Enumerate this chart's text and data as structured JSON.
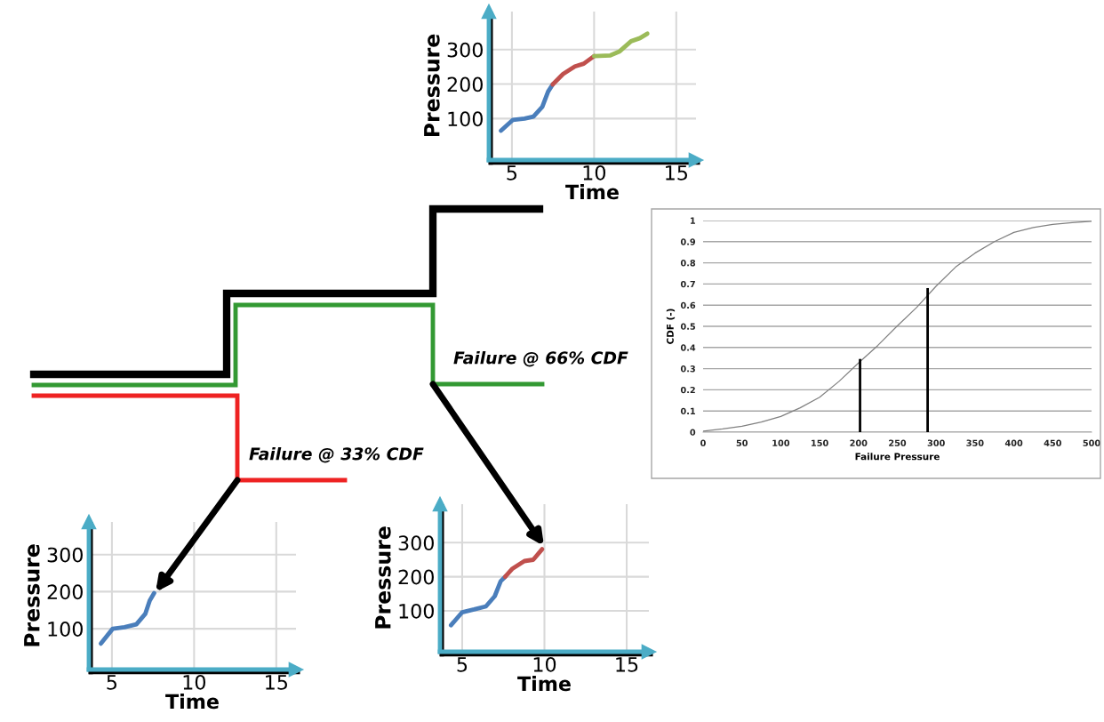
{
  "chart_data": [
    {
      "type": "line",
      "xlabel": "Time",
      "ylabel": "Pressure",
      "xlim": [
        3.6,
        16.2
      ],
      "ylim": [
        -20,
        410
      ],
      "xticks": [
        5,
        10,
        15
      ],
      "yticks": [
        100,
        200,
        300
      ],
      "grid": true,
      "series": [
        {
          "color": "#4a7ebb",
          "x": [
            4.33,
            5.05,
            5.77,
            6.31,
            6.85,
            7.2,
            7.48
          ],
          "values": [
            65,
            96,
            100,
            106,
            134,
            178,
            199
          ]
        },
        {
          "color": "#c0504d",
          "x": [
            7.48,
            8.11,
            8.83,
            9.37,
            10.0
          ],
          "values": [
            199,
            229,
            251,
            259,
            281
          ]
        },
        {
          "color": "#9bbb59",
          "x": [
            10.0,
            10.99,
            11.53,
            12.25,
            12.79,
            13.24
          ],
          "values": [
            281,
            283,
            294,
            324,
            333,
            346
          ]
        }
      ]
    },
    {
      "type": "other",
      "annotations": [
        "Failure @ 66% CDF",
        "Failure @ 33% CDF"
      ]
    },
    {
      "type": "line",
      "xlabel": "Failure Pressure",
      "ylabel": "CDF (-)",
      "xlim": [
        0,
        500
      ],
      "ylim": [
        0,
        1
      ],
      "xticks": [
        0,
        50,
        100,
        150,
        200,
        250,
        300,
        350,
        400,
        450,
        500
      ],
      "yticks": [
        0,
        0.1,
        0.2,
        0.3,
        0.4,
        0.5,
        0.6,
        0.7,
        0.8,
        0.9,
        1
      ],
      "grid": "y",
      "series": [
        {
          "color": "#808080",
          "x": [
            0,
            25,
            50,
            75,
            100,
            125,
            150,
            175,
            200,
            225,
            250,
            275,
            300,
            325,
            350,
            375,
            400,
            425,
            450,
            475,
            500
          ],
          "values": [
            0.005,
            0.015,
            0.028,
            0.048,
            0.074,
            0.115,
            0.165,
            0.24,
            0.327,
            0.41,
            0.502,
            0.59,
            0.69,
            0.78,
            0.846,
            0.9,
            0.944,
            0.967,
            0.982,
            0.99,
            0.996
          ]
        },
        {
          "color": "#000000",
          "x": [
            202,
            202
          ],
          "values": [
            0,
            0.34
          ]
        },
        {
          "color": "#000000",
          "x": [
            289,
            289
          ],
          "values": [
            0,
            0.675
          ]
        }
      ]
    },
    {
      "type": "line",
      "xlabel": "Time",
      "ylabel": "Pressure",
      "xlim": [
        3.6,
        16.2
      ],
      "ylim": [
        -10,
        388
      ],
      "xticks": [
        5,
        10,
        15
      ],
      "yticks": [
        100,
        200,
        300
      ],
      "grid": true,
      "series": [
        {
          "color": "#4a7ebb",
          "x": [
            4.33,
            5.05,
            5.77,
            6.49,
            7.03,
            7.3,
            7.57
          ],
          "values": [
            60,
            100,
            104,
            112,
            140,
            176,
            196
          ]
        }
      ]
    },
    {
      "type": "line",
      "xlabel": "Time",
      "ylabel": "Pressure",
      "xlim": [
        3.65,
        16.35
      ],
      "ylim": [
        -20,
        413
      ],
      "xticks": [
        5,
        10,
        15
      ],
      "yticks": [
        100,
        200,
        300
      ],
      "grid": true,
      "series": [
        {
          "color": "#4a7ebb",
          "x": [
            4.32,
            5.0,
            5.72,
            6.44,
            6.98,
            7.34,
            7.61
          ],
          "values": [
            58,
            96,
            104,
            113,
            143,
            187,
            200
          ]
        },
        {
          "color": "#c0504d",
          "x": [
            7.61,
            8.06,
            8.78,
            9.32,
            9.86
          ],
          "values": [
            200,
            224,
            246,
            250,
            281
          ]
        }
      ]
    }
  ]
}
